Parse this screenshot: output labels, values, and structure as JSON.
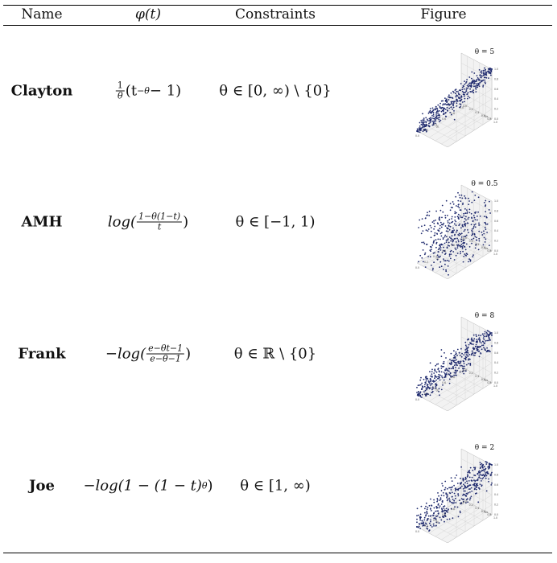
{
  "headers": {
    "name": "Name",
    "phi": "φ(t)",
    "constraints": "Constraints",
    "figure": "Figure"
  },
  "rows": [
    {
      "name": "Clayton",
      "theta_label": "θ = 5",
      "constraint": "θ ∈ [0, ∞) \\ {0}",
      "dependence": 5
    },
    {
      "name": "AMH",
      "theta_label": "θ = 0.5",
      "constraint": "θ ∈ [−1, 1)",
      "dependence": 0.5
    },
    {
      "name": "Frank",
      "theta_label": "θ = 8",
      "constraint": "θ ∈ ℝ \\ {0}",
      "dependence": 8
    },
    {
      "name": "Joe",
      "theta_label": "θ = 2",
      "constraint": "θ ∈ [1, ∞)",
      "dependence": 2
    }
  ],
  "formulas": {
    "clayton": {
      "frac_num": "1",
      "frac_den": "θ",
      "body": "(t",
      "exp": "−θ",
      "tail": " − 1)"
    },
    "amh": {
      "fn": "log(",
      "frac_num": "1−θ(1−t)",
      "frac_den": "t",
      "tail": ")"
    },
    "frank": {
      "fn": "−log(",
      "frac_num": "e−θt−1",
      "frac_den": "e−θ−1",
      "tail": ")"
    },
    "joe": {
      "body": "−log(1 − (1 − t)",
      "exp": "θ",
      "tail": ")"
    }
  },
  "axis": {
    "ticks": [
      "0.0",
      "0.2",
      "0.4",
      "0.6",
      "0.8",
      "1.0"
    ],
    "x_label": "u₁",
    "y_label": "u₂",
    "z_label": "z"
  },
  "colors": {
    "points": "#1f2a6e",
    "grid": "#d0d0d0",
    "pane": "#f2f2f2"
  }
}
